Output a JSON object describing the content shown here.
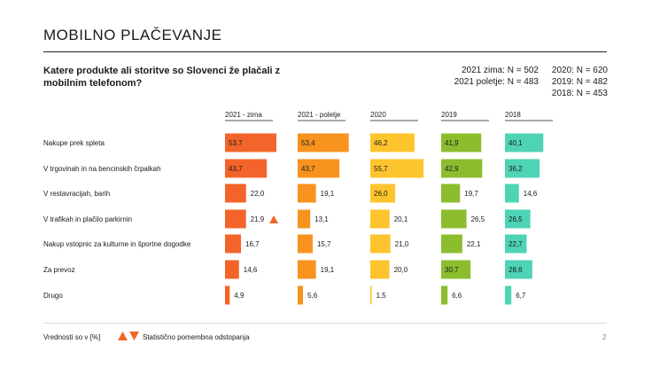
{
  "page": {
    "title": "MOBILNO PLAČEVANJE",
    "question": "Katere produkte ali storitve so Slovenci že plačali z mobilnim telefonom?",
    "sample_sizes_left": [
      "2021 zima: N = 502",
      "2021 poletje: N = 483"
    ],
    "sample_sizes_right": [
      "2020: N = 620",
      "2019: N = 482",
      "2018: N = 453"
    ],
    "footer_note": "Vrednosti so v [%]",
    "footer_legend": "Statistično pomembna odstopanja",
    "page_number": "2"
  },
  "chart_data": {
    "type": "bar",
    "title": "MOBILNO PLAČEVANJE",
    "categories": [
      "Nakupe prek spleta",
      "V trgovinah in na bencinskih črpalkah",
      "V restavracijah, barih",
      "V trafikah in plačilo parkirnin",
      "Nakup vstopnic za kulturne in športne dogodke",
      "Za prevoz",
      "Drugo"
    ],
    "series": [
      {
        "name": "2021 - zima",
        "color": "#f3642a",
        "values": [
          53.7,
          43.7,
          22.0,
          21.9,
          16.7,
          14.6,
          4.9
        ],
        "labels": [
          "53,7",
          "43,7",
          "22,0",
          "21,9",
          "16,7",
          "14,6",
          "4,9"
        ],
        "label_inside": [
          true,
          true,
          false,
          false,
          false,
          false,
          false
        ]
      },
      {
        "name": "2021 - poletje",
        "color": "#f7931e",
        "values": [
          53.4,
          43.7,
          19.1,
          13.1,
          15.7,
          19.1,
          5.6
        ],
        "labels": [
          "53,4",
          "43,7",
          "19,1",
          "13,1",
          "15,7",
          "19,1",
          "5,6"
        ],
        "label_inside": [
          true,
          true,
          false,
          false,
          false,
          false,
          false
        ]
      },
      {
        "name": "2020",
        "color": "#fec42d",
        "values": [
          46.2,
          55.7,
          26.0,
          20.1,
          21.0,
          20.0,
          1.5
        ],
        "labels": [
          "46,2",
          "55,7",
          "26,0",
          "20,1",
          "21,0",
          "20,0",
          "1,5"
        ],
        "label_inside": [
          true,
          true,
          true,
          false,
          false,
          false,
          false
        ]
      },
      {
        "name": "2019",
        "color": "#8cbd2e",
        "values": [
          41.9,
          42.9,
          19.7,
          26.5,
          22.1,
          30.7,
          6.6
        ],
        "labels": [
          "41,9",
          "42,9",
          "19,7",
          "26,5",
          "22,1",
          "30,7",
          "6,6"
        ],
        "label_inside": [
          true,
          true,
          false,
          false,
          false,
          true,
          false
        ]
      },
      {
        "name": "2018",
        "color": "#4ed3b6",
        "values": [
          40.1,
          36.2,
          14.6,
          26.5,
          22.7,
          28.6,
          6.7
        ],
        "labels": [
          "40,1",
          "36,2",
          "14,6",
          "26,5",
          "22,7",
          "28,6",
          "6,7"
        ],
        "label_inside": [
          true,
          true,
          false,
          true,
          true,
          true,
          false
        ]
      }
    ],
    "annotations": [
      {
        "series": "2021 - zima",
        "category": "V trafikah in plačilo parkirnin",
        "marker": "triangle-up",
        "color": "#f3642a"
      }
    ],
    "xlim": [
      0,
      60
    ]
  }
}
